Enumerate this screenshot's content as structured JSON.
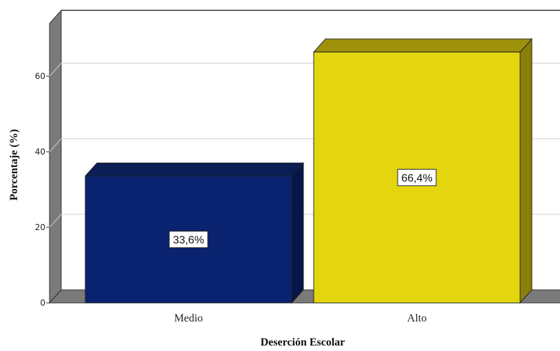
{
  "chart_data": {
    "type": "bar",
    "title": "",
    "xlabel": "Deserción Escolar",
    "ylabel": "Porcentaje (%)",
    "categories": [
      "Medio",
      "Alto"
    ],
    "values": [
      33.6,
      66.4
    ],
    "data_labels": [
      "33,6%",
      "66,4%"
    ],
    "yticks": [
      0,
      20,
      40,
      60
    ],
    "ylim": [
      0,
      74
    ],
    "grid": true,
    "three_d": true,
    "colors": [
      "#0a2370",
      "#e3d60f"
    ],
    "side_colors": [
      "#061649",
      "#8a7f09"
    ],
    "top_colors": [
      "#0b1d55",
      "#9e920d"
    ],
    "wall_color": "#7a7a7a"
  }
}
